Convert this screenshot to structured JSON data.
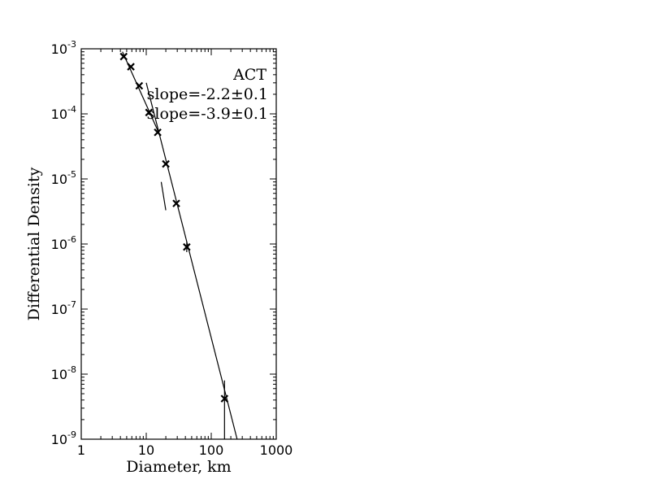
{
  "chart_data": {
    "type": "scatter",
    "title": "",
    "xlabel": "Diameter, km",
    "ylabel": "Differential Density",
    "x_scale": "log",
    "y_scale": "log",
    "xlim": [
      1,
      1000
    ],
    "ylim": [
      1e-09,
      0.001
    ],
    "grid": false,
    "x_ticks": [
      {
        "value": 1,
        "label": "1"
      },
      {
        "value": 10,
        "label": "10"
      },
      {
        "value": 100,
        "label": "100"
      },
      {
        "value": 1000,
        "label": "1000"
      }
    ],
    "y_ticks": [
      {
        "value": 1e-09,
        "base": "10",
        "exp": "-9"
      },
      {
        "value": 1e-08,
        "base": "10",
        "exp": "-8"
      },
      {
        "value": 1e-07,
        "base": "10",
        "exp": "-7"
      },
      {
        "value": 1e-06,
        "base": "10",
        "exp": "-6"
      },
      {
        "value": 1e-05,
        "base": "10",
        "exp": "-5"
      },
      {
        "value": 0.0001,
        "base": "10",
        "exp": "-4"
      },
      {
        "value": 0.001,
        "base": "10",
        "exp": "-3"
      }
    ],
    "points": [
      {
        "x": 4.5,
        "y": 0.00076,
        "err_low": null,
        "err_high": null
      },
      {
        "x": 5.8,
        "y": 0.00053,
        "err_low": null,
        "err_high": null
      },
      {
        "x": 7.8,
        "y": 0.00027,
        "err_low": null,
        "err_high": null
      },
      {
        "x": 11,
        "y": 0.000105,
        "err_low": null,
        "err_high": null
      },
      {
        "x": 15,
        "y": 5.2e-05,
        "err_low": null,
        "err_high": null
      },
      {
        "x": 20,
        "y": 1.7e-05,
        "err_low": null,
        "err_high": null
      },
      {
        "x": 29,
        "y": 4.2e-06,
        "err_low": null,
        "err_high": null
      },
      {
        "x": 42,
        "y": 9e-07,
        "err_low": 7.5e-07,
        "err_high": 1.08e-06
      },
      {
        "x": 160,
        "y": 4.2e-09,
        "err_low": 1e-09,
        "err_high": 8e-09
      }
    ],
    "fit_lines": [
      {
        "slope_label": "slope=-2.2±0.1",
        "x": [
          4.3,
          15.5
        ],
        "y": [
          0.0009,
          5.2e-05
        ]
      },
      {
        "slope_label": "slope=-3.9±0.1",
        "x": [
          10,
          250
        ],
        "y": [
          0.0003,
          1e-09
        ]
      }
    ],
    "fit_line_dash": {
      "x": [
        17,
        20
      ],
      "y": [
        9e-06,
        3.3e-06
      ]
    },
    "annotations": [
      "ACT",
      "slope=-2.2±0.1",
      "slope=-3.9±0.1"
    ],
    "marker": "x",
    "color": "#000000"
  }
}
